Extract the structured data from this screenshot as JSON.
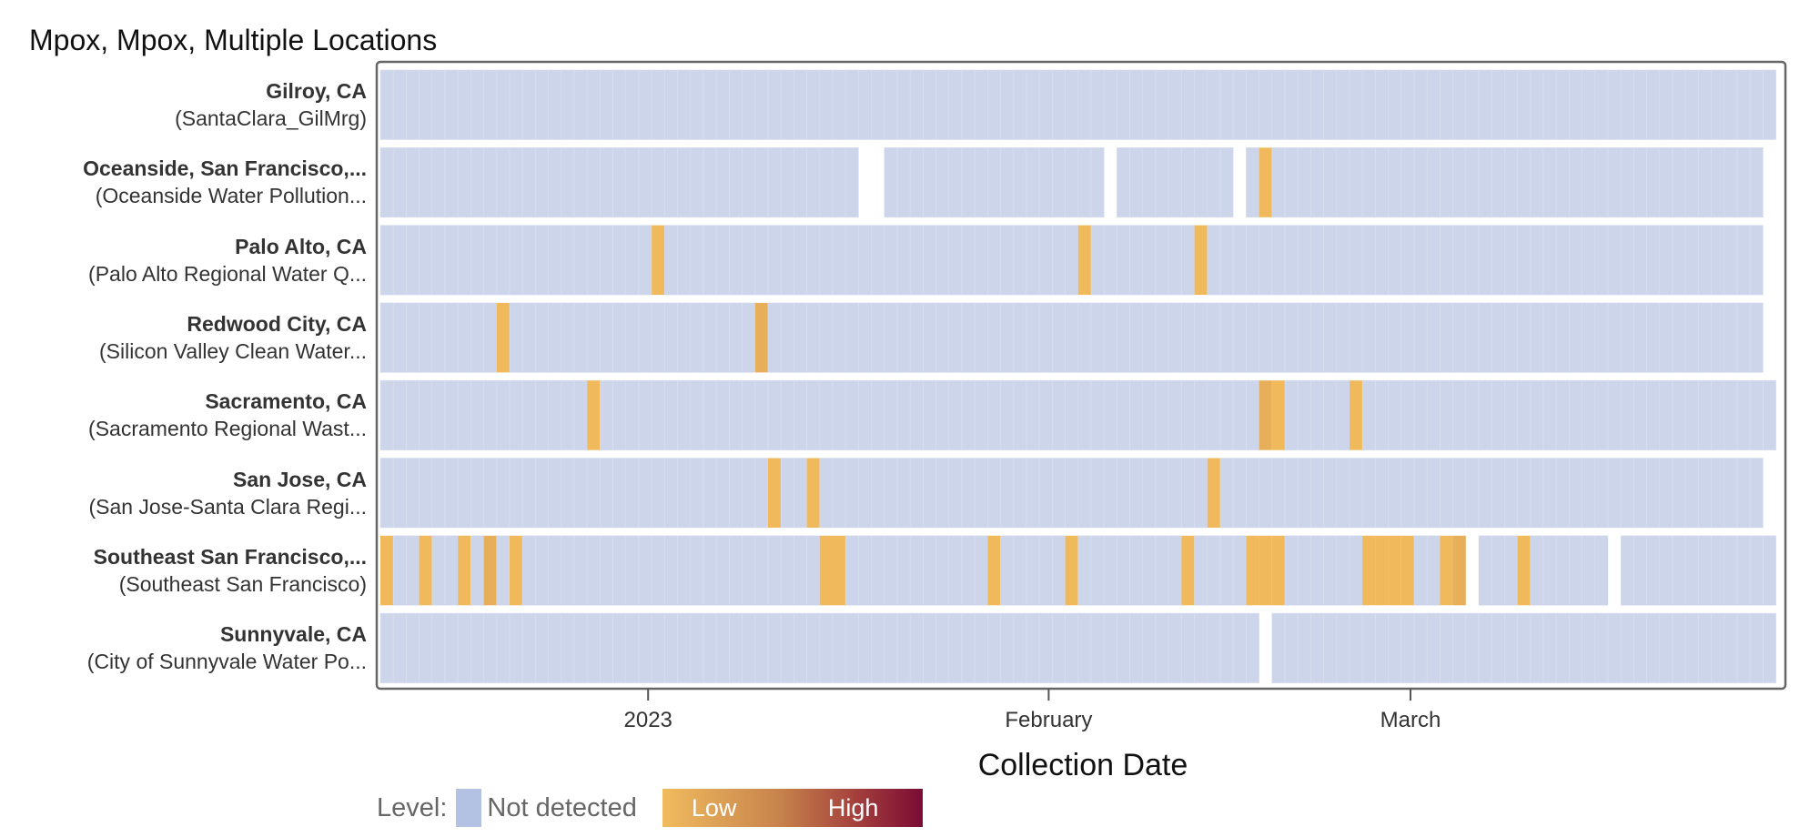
{
  "chart_data": {
    "type": "heatmap",
    "title": "Mpox, Mpox, Multiple Locations",
    "xlabel": "Collection Date",
    "x_range": [
      "2022-12-11",
      "2023-03-28"
    ],
    "x_ticks": [
      {
        "date": "2023-01-01",
        "label": "2023"
      },
      {
        "date": "2023-02-01",
        "label": "February"
      },
      {
        "date": "2023-03-01",
        "label": "March"
      }
    ],
    "legend": {
      "title": "Level:",
      "not_detected": "Not detected",
      "low": "Low",
      "high": "High",
      "placement": "bottom"
    },
    "colors": {
      "not_detected": "#CDD5EB",
      "legend_not_detected": "#B3C1E3",
      "low": "#EFB95C",
      "low_dark": "#E7AF5A"
    },
    "rows": [
      {
        "name": "Gilroy, CA",
        "site": "(SantaClara_GilMrg)",
        "first": "2022-12-11",
        "last": "2023-03-28",
        "missing": [],
        "detections": []
      },
      {
        "name": "Oceanside, San Francisco,...",
        "site": "(Oceanside Water Pollution...",
        "first": "2022-12-11",
        "last": "2023-03-27",
        "missing": [
          "2023-01-17",
          "2023-01-18",
          "2023-02-05",
          "2023-02-15"
        ],
        "detections": [
          {
            "date": "2023-02-17",
            "level": "low"
          }
        ]
      },
      {
        "name": "Palo Alto, CA",
        "site": "(Palo Alto Regional Water Q...",
        "first": "2022-12-11",
        "last": "2023-03-27",
        "missing": [],
        "detections": [
          {
            "date": "2023-01-01",
            "level": "low"
          },
          {
            "date": "2023-02-03",
            "level": "low"
          },
          {
            "date": "2023-02-12",
            "level": "low"
          }
        ]
      },
      {
        "name": "Redwood City, CA",
        "site": "(Silicon Valley Clean Water...",
        "first": "2022-12-11",
        "last": "2023-03-27",
        "missing": [],
        "detections": [
          {
            "date": "2022-12-20",
            "level": "low"
          },
          {
            "date": "2023-01-09",
            "level": "low_dark"
          }
        ]
      },
      {
        "name": "Sacramento, CA",
        "site": "(Sacramento Regional Wast...",
        "first": "2022-12-11",
        "last": "2023-03-28",
        "missing": [],
        "detections": [
          {
            "date": "2022-12-27",
            "level": "low"
          },
          {
            "date": "2023-02-17",
            "level": "low_dark"
          },
          {
            "date": "2023-02-18",
            "level": "low"
          },
          {
            "date": "2023-02-24",
            "level": "low"
          }
        ]
      },
      {
        "name": "San Jose, CA",
        "site": "(San Jose-Santa Clara Regi...",
        "first": "2022-12-11",
        "last": "2023-03-27",
        "missing": [],
        "detections": [
          {
            "date": "2023-01-10",
            "level": "low"
          },
          {
            "date": "2023-01-13",
            "level": "low"
          },
          {
            "date": "2023-02-13",
            "level": "low"
          }
        ]
      },
      {
        "name": "Southeast San Francisco,...",
        "site": "(Southeast San Francisco)",
        "first": "2022-12-11",
        "last": "2023-03-28",
        "missing": [
          "2023-03-05",
          "2023-03-16"
        ],
        "detections": [
          {
            "date": "2022-12-11",
            "level": "low"
          },
          {
            "date": "2022-12-14",
            "level": "low"
          },
          {
            "date": "2022-12-17",
            "level": "low"
          },
          {
            "date": "2022-12-19",
            "level": "low_dark"
          },
          {
            "date": "2022-12-21",
            "level": "low"
          },
          {
            "date": "2023-01-14",
            "level": "low"
          },
          {
            "date": "2023-01-15",
            "level": "low"
          },
          {
            "date": "2023-01-27",
            "level": "low"
          },
          {
            "date": "2023-02-02",
            "level": "low"
          },
          {
            "date": "2023-02-11",
            "level": "low"
          },
          {
            "date": "2023-02-16",
            "level": "low"
          },
          {
            "date": "2023-02-17",
            "level": "low"
          },
          {
            "date": "2023-02-18",
            "level": "low"
          },
          {
            "date": "2023-02-25",
            "level": "low"
          },
          {
            "date": "2023-02-26",
            "level": "low"
          },
          {
            "date": "2023-02-27",
            "level": "low"
          },
          {
            "date": "2023-02-28",
            "level": "low"
          },
          {
            "date": "2023-03-03",
            "level": "low"
          },
          {
            "date": "2023-03-04",
            "level": "low_dark"
          },
          {
            "date": "2023-03-09",
            "level": "low"
          }
        ]
      },
      {
        "name": "Sunnyvale, CA",
        "site": "(City of Sunnyvale Water Po...",
        "first": "2022-12-11",
        "last": "2023-03-28",
        "missing": [
          "2023-02-17"
        ],
        "detections": []
      }
    ]
  }
}
